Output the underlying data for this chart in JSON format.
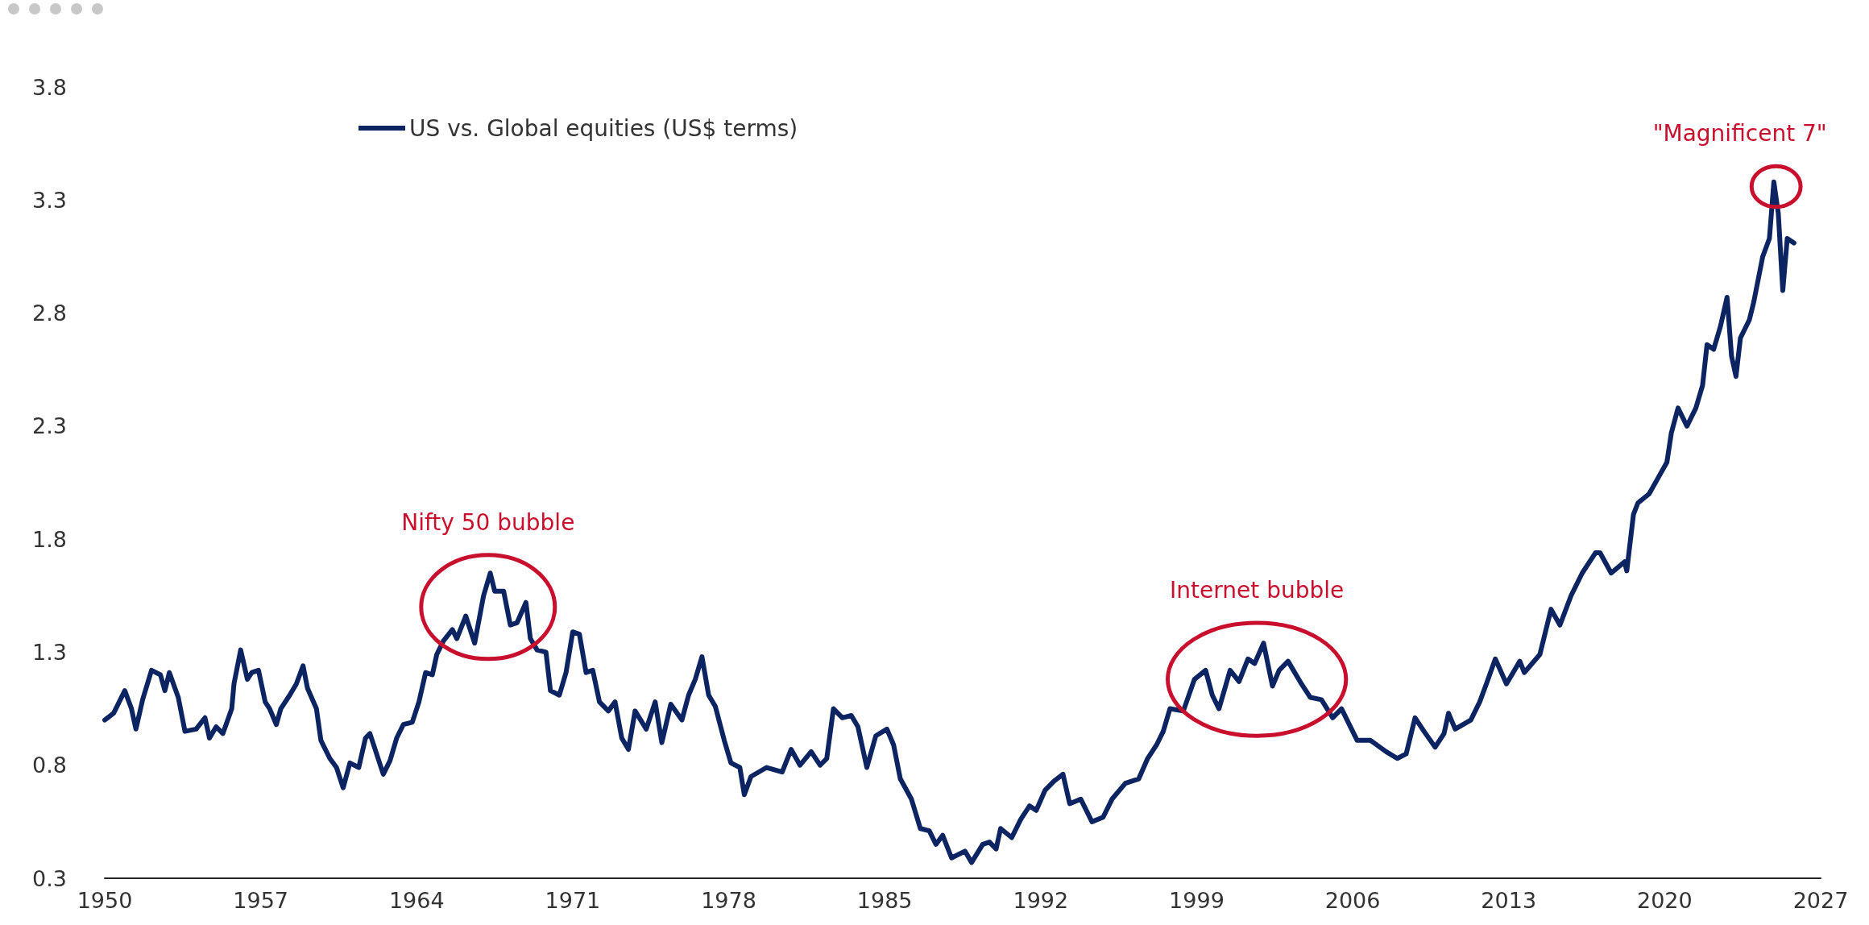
{
  "chart_data": {
    "type": "line",
    "xlim": [
      1950,
      2027
    ],
    "xticks": [
      1950,
      1957,
      1964,
      1971,
      1978,
      1985,
      1992,
      1999,
      2006,
      2013,
      2020,
      2027
    ],
    "ylim": [
      0.3,
      3.8
    ],
    "yticks": [
      0.3,
      0.8,
      1.3,
      1.8,
      2.3,
      2.8,
      3.3,
      3.8
    ],
    "grid": false,
    "legend": "top left",
    "marker": "none",
    "line_style": "solid",
    "series": [
      {
        "name": "US vs. Global equities (US$ terms)",
        "color": "#0c2461",
        "x": [
          1950.0,
          1950.4,
          1950.9,
          1951.2,
          1951.4,
          1951.7,
          1952.1,
          1952.5,
          1952.7,
          1952.9,
          1953.3,
          1953.6,
          1954.1,
          1954.5,
          1954.7,
          1955.0,
          1955.3,
          1955.7,
          1955.8,
          1956.1,
          1956.4,
          1956.6,
          1956.9,
          1957.2,
          1957.4,
          1957.7,
          1957.9,
          1958.3,
          1958.6,
          1958.9,
          1959.1,
          1959.5,
          1959.7,
          1960.1,
          1960.4,
          1960.7,
          1961.0,
          1961.4,
          1961.7,
          1961.9,
          1962.2,
          1962.5,
          1962.8,
          1963.1,
          1963.4,
          1963.8,
          1964.1,
          1964.4,
          1964.7,
          1964.9,
          1965.2,
          1965.6,
          1965.8,
          1966.2,
          1966.6,
          1967.0,
          1967.3,
          1967.5,
          1967.9,
          1968.2,
          1968.5,
          1968.9,
          1969.1,
          1969.4,
          1969.8,
          1970.0,
          1970.4,
          1970.7,
          1971.0,
          1971.3,
          1971.6,
          1971.9,
          1972.2,
          1972.6,
          1972.9,
          1973.2,
          1973.5,
          1973.8,
          1974.3,
          1974.7,
          1975.0,
          1975.4,
          1975.9,
          1976.2,
          1976.5,
          1976.8,
          1977.1,
          1977.4,
          1977.8,
          1978.1,
          1978.5,
          1978.7,
          1979.0,
          1979.7,
          1980.4,
          1980.8,
          1981.2,
          1981.7,
          1982.1,
          1982.4,
          1982.7,
          1983.1,
          1983.5,
          1983.8,
          1984.2,
          1984.6,
          1985.1,
          1985.4,
          1985.7,
          1986.2,
          1986.6,
          1987.0,
          1987.3,
          1987.6,
          1988.0,
          1988.6,
          1988.9,
          1989.4,
          1989.7,
          1990.0,
          1990.2,
          1990.7,
          1991.1,
          1991.5,
          1991.8,
          1992.2,
          1992.6,
          1993.0,
          1993.3,
          1993.8,
          1994.3,
          1994.8,
          1995.2,
          1995.8,
          1996.4,
          1996.8,
          1997.2,
          1997.5,
          1997.8,
          1998.4,
          1998.9,
          1999.4,
          1999.7,
          2000.0,
          2000.5,
          2000.9,
          2001.3,
          2001.6,
          2002.0,
          2002.4,
          2002.7,
          2003.1,
          2003.7,
          2004.1,
          2004.6,
          2005.1,
          2005.5,
          2006.2,
          2006.8,
          2007.5,
          2008.0,
          2008.4,
          2008.8,
          2009.2,
          2009.7,
          2010.1,
          2010.3,
          2010.6,
          2011.3,
          2011.7,
          2012.0,
          2012.4,
          2012.9,
          2013.5,
          2013.7,
          2014.4,
          2014.9,
          2015.3,
          2015.8,
          2016.3,
          2016.9,
          2017.1,
          2017.6,
          2018.2,
          2018.3,
          2018.6,
          2018.8,
          2019.3,
          2019.7,
          2020.1,
          2020.3,
          2020.6,
          2021.0,
          2021.4,
          2021.7,
          2021.9,
          2022.2,
          2022.5,
          2022.8,
          2023.0,
          2023.2,
          2023.4,
          2023.8,
          2024.0,
          2024.4,
          2024.7,
          2024.9,
          2025.1,
          2025.3,
          2025.5,
          2025.8
        ],
        "values": [
          1.0,
          1.03,
          1.13,
          1.05,
          0.96,
          1.09,
          1.22,
          1.2,
          1.13,
          1.21,
          1.1,
          0.95,
          0.96,
          1.01,
          0.92,
          0.97,
          0.94,
          1.05,
          1.16,
          1.31,
          1.18,
          1.21,
          1.22,
          1.08,
          1.05,
          0.98,
          1.05,
          1.11,
          1.16,
          1.24,
          1.14,
          1.05,
          0.91,
          0.83,
          0.79,
          0.7,
          0.81,
          0.79,
          0.92,
          0.94,
          0.85,
          0.76,
          0.82,
          0.92,
          0.98,
          0.99,
          1.08,
          1.21,
          1.2,
          1.29,
          1.35,
          1.4,
          1.36,
          1.46,
          1.34,
          1.55,
          1.65,
          1.57,
          1.57,
          1.42,
          1.43,
          1.52,
          1.36,
          1.31,
          1.3,
          1.13,
          1.11,
          1.21,
          1.39,
          1.38,
          1.21,
          1.22,
          1.08,
          1.04,
          1.08,
          0.92,
          0.87,
          1.04,
          0.96,
          1.08,
          0.9,
          1.07,
          1.0,
          1.11,
          1.18,
          1.28,
          1.11,
          1.06,
          0.91,
          0.81,
          0.79,
          0.67,
          0.75,
          0.79,
          0.77,
          0.87,
          0.8,
          0.86,
          0.8,
          0.83,
          1.05,
          1.01,
          1.02,
          0.97,
          0.79,
          0.93,
          0.96,
          0.89,
          0.74,
          0.65,
          0.52,
          0.51,
          0.45,
          0.49,
          0.39,
          0.42,
          0.37,
          0.45,
          0.46,
          0.43,
          0.52,
          0.48,
          0.56,
          0.62,
          0.6,
          0.69,
          0.73,
          0.76,
          0.63,
          0.65,
          0.55,
          0.57,
          0.65,
          0.72,
          0.74,
          0.83,
          0.89,
          0.95,
          1.05,
          1.04,
          1.18,
          1.22,
          1.11,
          1.05,
          1.22,
          1.17,
          1.27,
          1.25,
          1.34,
          1.15,
          1.22,
          1.26,
          1.16,
          1.1,
          1.09,
          1.01,
          1.05,
          0.91,
          0.91,
          0.86,
          0.83,
          0.85,
          1.01,
          0.95,
          0.88,
          0.94,
          1.03,
          0.96,
          1.0,
          1.08,
          1.16,
          1.27,
          1.16,
          1.26,
          1.21,
          1.29,
          1.49,
          1.42,
          1.55,
          1.65,
          1.74,
          1.74,
          1.65,
          1.7,
          1.66,
          1.91,
          1.96,
          2.0,
          2.07,
          2.14,
          2.27,
          2.38,
          2.3,
          2.38,
          2.48,
          2.66,
          2.64,
          2.74,
          2.87,
          2.61,
          2.52,
          2.69,
          2.77,
          2.85,
          3.05,
          3.13,
          3.38,
          3.24,
          2.9,
          3.13,
          3.11
        ]
      }
    ],
    "annotations": [
      {
        "text": "Nifty 50 bubble",
        "x": 1967.3,
        "y": 1.65
      },
      {
        "text": "Internet bubble",
        "x": 2002.0,
        "y": 1.34
      },
      {
        "text": "\"Magnificent 7\"",
        "x": 2024.9,
        "y": 3.38
      }
    ]
  }
}
